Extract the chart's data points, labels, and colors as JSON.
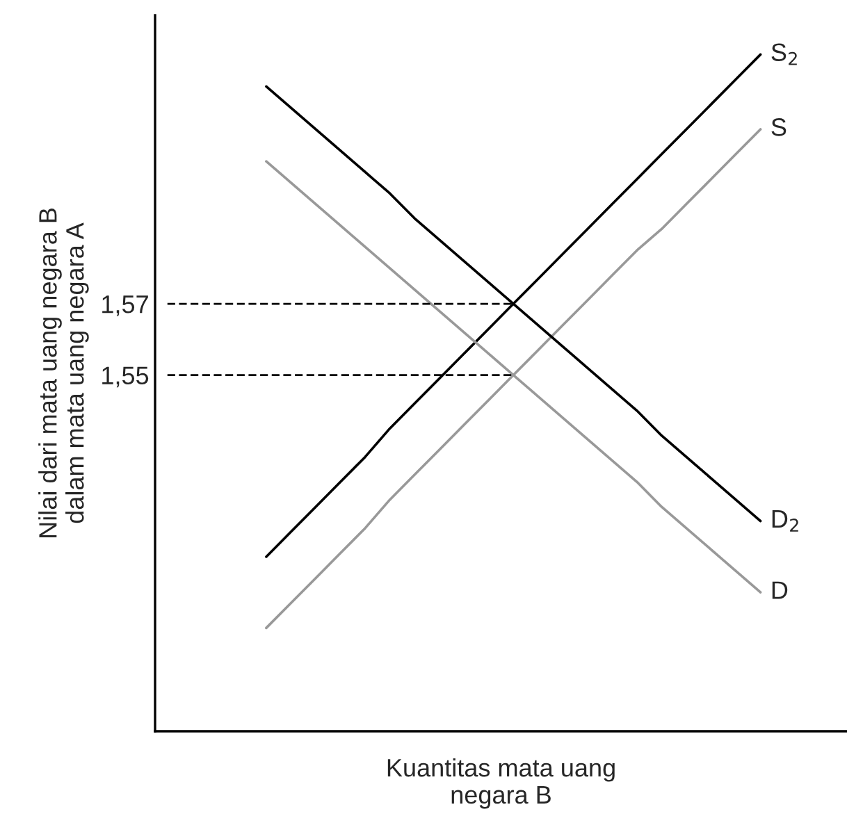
{
  "chart_data": {
    "type": "line",
    "xlabel": "Kuantitas mata uang\nnegara B",
    "ylabel": "Nilai dari mata uang negara B\ndalam mata uang negara A",
    "categories": [
      null,
      null,
      null,
      null,
      null,
      null,
      null,
      null,
      null,
      null,
      null,
      null,
      null,
      null,
      null,
      null,
      null,
      null,
      null,
      null,
      null,
      null,
      null,
      null,
      null,
      null,
      null,
      null
    ],
    "series": [
      {
        "name": "S$_{2}$",
        "color": "#000000",
        "line_style": "solid",
        "values": [
          null,
          null,
          null,
          null,
          1.499,
          1.506,
          1.513,
          1.52,
          1.527,
          1.535,
          1.542,
          1.549,
          1.556,
          1.563,
          1.57,
          1.577,
          1.584,
          1.591,
          1.598,
          1.605,
          1.612,
          1.619,
          1.626,
          1.633,
          1.64,
          null,
          null,
          null
        ]
      },
      {
        "name": "S",
        "color": "#999999",
        "line_style": "solid",
        "values": [
          null,
          null,
          null,
          null,
          1.479,
          1.486,
          1.493,
          1.5,
          1.507,
          1.515,
          1.522,
          1.529,
          1.536,
          1.543,
          1.55,
          1.557,
          1.564,
          1.571,
          1.578,
          1.585,
          1.591,
          1.598,
          1.605,
          1.612,
          1.619,
          null,
          null,
          null
        ]
      },
      {
        "name": "D$_{2}$",
        "color": "#000000",
        "line_style": "solid",
        "values": [
          null,
          null,
          null,
          null,
          1.631,
          1.625,
          1.619,
          1.613,
          1.607,
          1.601,
          1.594,
          1.588,
          1.582,
          1.576,
          1.57,
          1.564,
          1.558,
          1.552,
          1.546,
          1.54,
          1.533,
          1.527,
          1.521,
          1.515,
          1.509,
          null,
          null,
          null
        ]
      },
      {
        "name": "D",
        "color": "#999999",
        "line_style": "solid",
        "values": [
          null,
          null,
          null,
          null,
          1.61,
          1.604,
          1.598,
          1.592,
          1.586,
          1.58,
          1.574,
          1.568,
          1.562,
          1.556,
          1.55,
          1.544,
          1.538,
          1.532,
          1.526,
          1.52,
          1.513,
          1.507,
          1.501,
          1.495,
          1.489,
          null,
          null,
          null
        ]
      },
      {
        "color": "#000000",
        "line_style": "dashed",
        "values": [
          1.57,
          1.57,
          1.57,
          1.57,
          1.57,
          1.57,
          1.57,
          1.57,
          1.57,
          1.57,
          1.57,
          1.57,
          1.57,
          1.57,
          1.57,
          null,
          null,
          null,
          null,
          null,
          null,
          null,
          null,
          null,
          null,
          null,
          null,
          null
        ]
      },
      {
        "color": "#000000",
        "line_style": "dashed",
        "values": [
          1.55,
          1.55,
          1.55,
          1.55,
          1.55,
          1.55,
          1.55,
          1.55,
          1.55,
          1.55,
          1.55,
          1.55,
          1.55,
          1.55,
          1.55,
          null,
          null,
          null,
          null,
          null,
          null,
          null,
          null,
          null,
          null,
          null,
          null,
          null
        ]
      }
    ],
    "ylim": [
      1.45,
      1.651
    ],
    "yticks": [
      {
        "value": 1.55,
        "label": "1,55"
      },
      {
        "value": 1.57,
        "label": "1,57"
      }
    ],
    "grid": false,
    "legend": false,
    "tick_labels": "y"
  }
}
